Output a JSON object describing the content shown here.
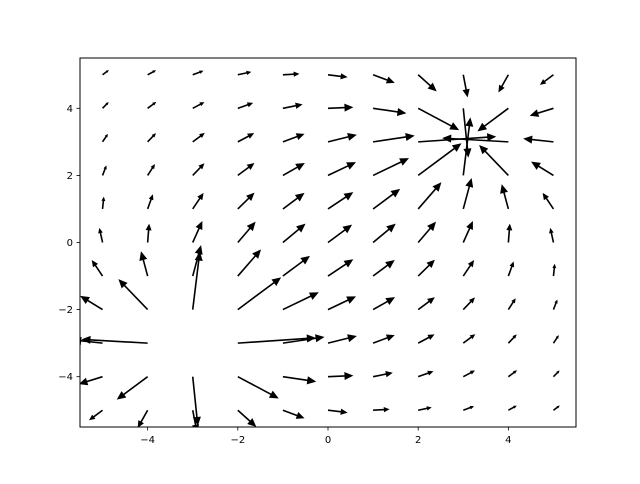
{
  "chart_data": {
    "type": "quiver",
    "title": "",
    "xlabel": "",
    "ylabel": "",
    "xlim": [
      -5.5,
      5.5
    ],
    "ylim": [
      -5.5,
      5.5
    ],
    "grid": false,
    "legend": "none",
    "xticks": [
      -4,
      -2,
      0,
      2,
      4
    ],
    "yticks": [
      -4,
      -2,
      0,
      2,
      4
    ],
    "xtick_labels": [
      "−4",
      "−2",
      "0",
      "2",
      "4"
    ],
    "ytick_labels": [
      "−4",
      "−2",
      "0",
      "2",
      "4"
    ],
    "grid_spacing": 1,
    "grid_range": [
      -5,
      5
    ],
    "sources": [
      {
        "center": [
          -3,
          -3
        ],
        "kind": "source"
      },
      {
        "center": [
          3,
          3
        ],
        "kind": "sink"
      }
    ],
    "arrow_color": "#000000"
  }
}
